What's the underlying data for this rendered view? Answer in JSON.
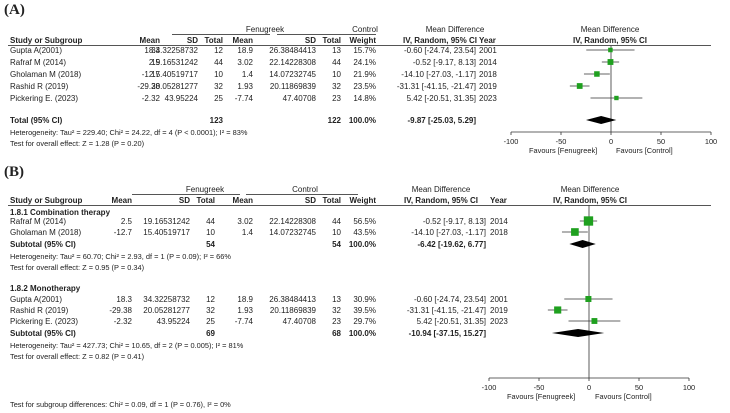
{
  "panel_a": {
    "label": "(A)",
    "header": {
      "group1": "Fenugreek",
      "group2": "Control",
      "mean_diff": "Mean Difference",
      "mean_diff_right": "Mean Difference",
      "study": "Study or Subgroup",
      "mean1": "Mean",
      "sd1": "SD",
      "total1": "Total",
      "mean2": "Mean",
      "sd2": "SD",
      "total2": "Total",
      "weight": "Weight",
      "ci": "IV, Random, 95% CI",
      "year": "Year",
      "ci_right": "IV, Random, 95% CI"
    },
    "rows": [
      {
        "study": "Gupta A(2001)",
        "mean1": "18.3",
        "sd1": "34.32258732",
        "total1": "12",
        "mean2": "18.9",
        "sd2": "26.38484413",
        "total2": "13",
        "weight": "15.7%",
        "ci": "-0.60 [-24.74, 23.54]",
        "year": "2001"
      },
      {
        "study": "Rafraf M (2014)",
        "mean1": "2.5",
        "sd1": "19.16531242",
        "total1": "44",
        "mean2": "3.02",
        "sd2": "22.14228308",
        "total2": "44",
        "weight": "24.1%",
        "ci": "-0.52 [-9.17, 8.13]",
        "year": "2014"
      },
      {
        "study": "Gholaman M (2018)",
        "mean1": "-12.7",
        "sd1": "15.40519717",
        "total1": "10",
        "mean2": "1.4",
        "sd2": "14.07232745",
        "total2": "10",
        "weight": "21.9%",
        "ci": "-14.10 [-27.03, -1.17]",
        "year": "2018"
      },
      {
        "study": "Rashid R (2019)",
        "mean1": "-29.38",
        "sd1": "20.05281277",
        "total1": "32",
        "mean2": "1.93",
        "sd2": "20.11869839",
        "total2": "32",
        "weight": "23.5%",
        "ci": "-31.31 [-41.15, -21.47]",
        "year": "2019"
      },
      {
        "study": "Pickering E. (2023)",
        "mean1": "-2.32",
        "sd1": "43.95224",
        "total1": "25",
        "mean2": "-7.74",
        "sd2": "47.40708",
        "total2": "23",
        "weight": "14.8%",
        "ci": "5.42 [-20.51, 31.35]",
        "year": "2023"
      }
    ],
    "total": {
      "label": "Total (95% CI)",
      "total1": "123",
      "total2": "122",
      "weight": "100.0%",
      "ci": "-9.87 [-25.03, 5.29]"
    },
    "heterogeneity": "Heterogeneity: Tau² = 229.40; Chi² = 24.22, df = 4 (P < 0.0001); I² = 83%",
    "overall_effect": "Test for overall effect: Z = 1.28 (P = 0.20)",
    "axis_ticks": [
      "-100",
      "-50",
      "0",
      "50",
      "100"
    ],
    "favours_left": "Favours [Fenugreek]",
    "favours_right": "Favours [Control]"
  },
  "panel_b": {
    "label": "(B)",
    "header": {
      "group1": "Fenugreek",
      "group2": "Control",
      "mean_diff": "Mean Difference",
      "mean_diff_right": "Mean Difference",
      "study": "Study or Subgroup",
      "mean1": "Mean",
      "sd1": "SD",
      "total1": "Total",
      "mean2": "Mean",
      "sd2": "SD",
      "total2": "Total",
      "weight": "Weight",
      "ci": "IV, Random, 95% CI",
      "year": "Year",
      "ci_right": "IV, Random, 95% CI"
    },
    "subgroup1": {
      "title": "1.8.1 Combination therapy",
      "rows": [
        {
          "study": "Rafraf M (2014)",
          "mean1": "2.5",
          "sd1": "19.16531242",
          "total1": "44",
          "mean2": "3.02",
          "sd2": "22.14228308",
          "total2": "44",
          "weight": "56.5%",
          "ci": "-0.52 [-9.17, 8.13]",
          "year": "2014"
        },
        {
          "study": "Gholaman M (2018)",
          "mean1": "-12.7",
          "sd1": "15.40519717",
          "total1": "10",
          "mean2": "1.4",
          "sd2": "14.07232745",
          "total2": "10",
          "weight": "43.5%",
          "ci": "-14.10 [-27.03, -1.17]",
          "year": "2018"
        }
      ],
      "subtotal": {
        "label": "Subtotal (95% CI)",
        "total1": "54",
        "total2": "54",
        "weight": "100.0%",
        "ci": "-6.42 [-19.62, 6.77]"
      },
      "heterogeneity": "Heterogeneity: Tau² = 60.70; Chi² = 2.93, df = 1 (P = 0.09); I² = 66%",
      "overall_effect": "Test for overall effect: Z = 0.95 (P = 0.34)"
    },
    "subgroup2": {
      "title": "1.8.2 Monotherapy",
      "rows": [
        {
          "study": "Gupta A(2001)",
          "mean1": "18.3",
          "sd1": "34.32258732",
          "total1": "12",
          "mean2": "18.9",
          "sd2": "26.38484413",
          "total2": "13",
          "weight": "30.9%",
          "ci": "-0.60 [-24.74, 23.54]",
          "year": "2001"
        },
        {
          "study": "Rashid R (2019)",
          "mean1": "-29.38",
          "sd1": "20.05281277",
          "total1": "32",
          "mean2": "1.93",
          "sd2": "20.11869839",
          "total2": "32",
          "weight": "39.5%",
          "ci": "-31.31 [-41.15, -21.47]",
          "year": "2019"
        },
        {
          "study": "Pickering E. (2023)",
          "mean1": "-2.32",
          "sd1": "43.95224",
          "total1": "25",
          "mean2": "-7.74",
          "sd2": "47.40708",
          "total2": "23",
          "weight": "29.7%",
          "ci": "5.42 [-20.51, 31.35]",
          "year": "2023"
        }
      ],
      "subtotal": {
        "label": "Subtotal (95% CI)",
        "total1": "69",
        "total2": "68",
        "weight": "100.0%",
        "ci": "-10.94 [-37.15, 15.27]"
      },
      "heterogeneity": "Heterogeneity: Tau² = 427.73; Chi² = 10.65, df = 2 (P = 0.005); I² = 81%",
      "overall_effect": "Test for overall effect: Z = 0.82 (P = 0.41)"
    },
    "subgroup_diff": "Test for subgroup differences: Chi² = 0.09, df = 1 (P = 0.76), I² = 0%",
    "axis_ticks": [
      "-100",
      "-50",
      "0",
      "50",
      "100"
    ],
    "favours_left": "Favours [Fenugreek]",
    "favours_right": "Favours [Control]"
  },
  "chart_data": [
    {
      "type": "forest",
      "title": "(A)",
      "xlim": [
        -100,
        100
      ],
      "square_color": "#1fa01f",
      "studies": [
        {
          "name": "Gupta A(2001)",
          "md": -0.6,
          "lo": -24.74,
          "hi": 23.54,
          "weight": 15.7
        },
        {
          "name": "Rafraf M (2014)",
          "md": -0.52,
          "lo": -9.17,
          "hi": 8.13,
          "weight": 24.1
        },
        {
          "name": "Gholaman M (2018)",
          "md": -14.1,
          "lo": -27.03,
          "hi": -1.17,
          "weight": 21.9
        },
        {
          "name": "Rashid R (2019)",
          "md": -31.31,
          "lo": -41.15,
          "hi": -21.47,
          "weight": 23.5
        },
        {
          "name": "Pickering E. (2023)",
          "md": 5.42,
          "lo": -20.51,
          "hi": 31.35,
          "weight": 14.8
        }
      ],
      "pooled": [
        {
          "name": "Total (95% CI)",
          "md": -9.87,
          "lo": -25.03,
          "hi": 5.29
        }
      ]
    },
    {
      "type": "forest",
      "title": "(B)",
      "xlim": [
        -100,
        100
      ],
      "square_color": "#1fa01f",
      "studies": [
        {
          "name": "Rafraf M (2014)",
          "md": -0.52,
          "lo": -9.17,
          "hi": 8.13,
          "weight": 56.5
        },
        {
          "name": "Gholaman M (2018)",
          "md": -14.1,
          "lo": -27.03,
          "hi": -1.17,
          "weight": 43.5
        },
        {
          "name": "Gupta A(2001)",
          "md": -0.6,
          "lo": -24.74,
          "hi": 23.54,
          "weight": 30.9
        },
        {
          "name": "Rashid R (2019)",
          "md": -31.31,
          "lo": -41.15,
          "hi": -21.47,
          "weight": 39.5
        },
        {
          "name": "Pickering E. (2023)",
          "md": 5.42,
          "lo": -20.51,
          "hi": 31.35,
          "weight": 29.7
        }
      ],
      "pooled": [
        {
          "name": "Subtotal (95% CI) combination",
          "md": -6.42,
          "lo": -19.62,
          "hi": 6.77
        },
        {
          "name": "Subtotal (95% CI) monotherapy",
          "md": -10.94,
          "lo": -37.15,
          "hi": 15.27
        }
      ]
    }
  ]
}
